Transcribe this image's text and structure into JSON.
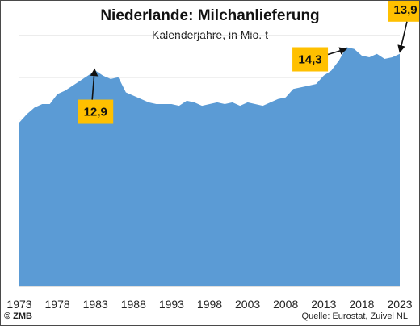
{
  "chart_data": {
    "type": "area",
    "title": "Niederlande: Milchanlieferung",
    "subtitle": "Kalenderjahre, in Mio. t",
    "xlabel": "",
    "ylabel": "",
    "ylim": [
      0,
      15
    ],
    "grid": true,
    "x_tick_labels": [
      "1973",
      "1978",
      "1983",
      "1988",
      "1993",
      "1998",
      "2003",
      "2008",
      "2013",
      "2018",
      "2023"
    ],
    "series": [
      {
        "years": [
          1973,
          1974,
          1975,
          1976,
          1977,
          1978,
          1979,
          1980,
          1981,
          1982,
          1983,
          1984,
          1985,
          1986,
          1987,
          1988,
          1989,
          1990,
          1991,
          1992,
          1993,
          1994,
          1995,
          1996,
          1997,
          1998,
          1999,
          2000,
          2001,
          2002,
          2003,
          2004,
          2005,
          2006,
          2007,
          2008,
          2009,
          2010,
          2011,
          2012,
          2013,
          2014,
          2015,
          2016,
          2017,
          2018,
          2019,
          2020,
          2021,
          2022,
          2023
        ],
        "values": [
          9.8,
          10.3,
          10.7,
          10.9,
          10.9,
          11.5,
          11.7,
          12.0,
          12.3,
          12.6,
          12.9,
          12.6,
          12.4,
          12.5,
          11.6,
          11.4,
          11.2,
          11.0,
          10.9,
          10.9,
          10.9,
          10.8,
          11.1,
          11.0,
          10.8,
          10.9,
          11.0,
          10.9,
          11.0,
          10.8,
          11.0,
          10.9,
          10.8,
          11.0,
          11.2,
          11.3,
          11.8,
          11.9,
          12.0,
          12.1,
          12.6,
          12.9,
          13.5,
          14.3,
          14.2,
          13.8,
          13.7,
          13.9,
          13.6,
          13.7,
          13.9
        ]
      }
    ],
    "annotations": [
      {
        "label": "12,9",
        "year": 1983,
        "value": 12.9
      },
      {
        "label": "14,3",
        "year": 2016,
        "value": 14.3
      },
      {
        "label": "13,9",
        "year": 2023,
        "value": 13.9
      }
    ],
    "colors": {
      "area": "#5B9BD5",
      "grid": "#D9D9D9",
      "callout": "#FFC000"
    }
  },
  "footer": {
    "source": "Quelle: Eurostat, Zuivel NL",
    "copyright": "© ZMB"
  }
}
